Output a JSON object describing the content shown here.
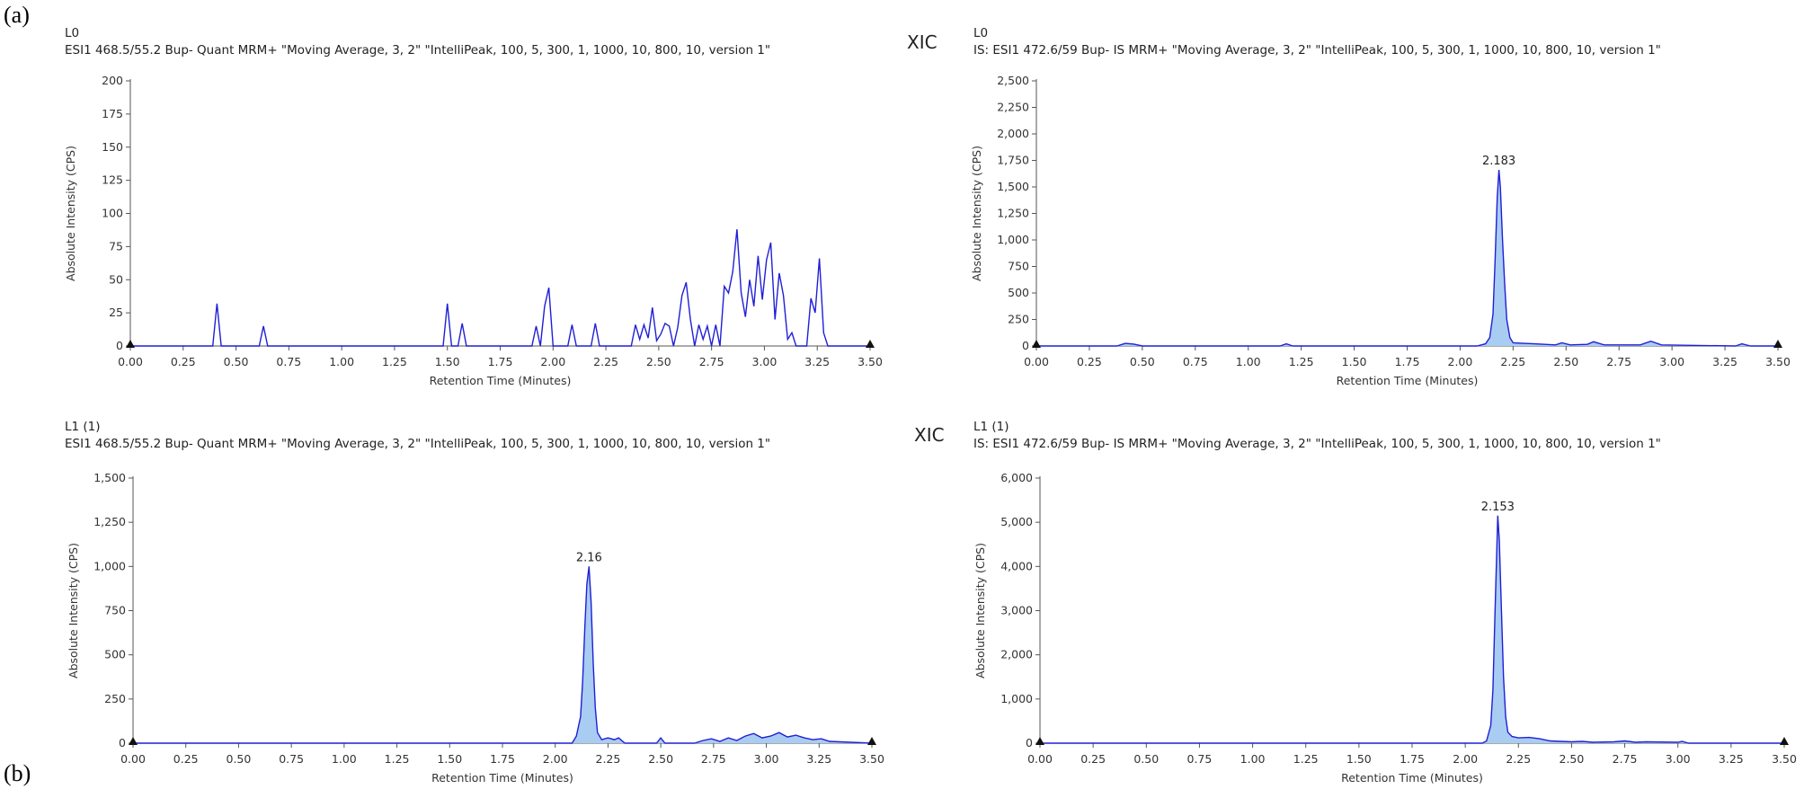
{
  "figure": {
    "label_a": "(a)",
    "label_b": "(b)"
  },
  "chart_data": [
    {
      "id": "a-left",
      "type": "line",
      "sample": "L0",
      "title": "ESI1 468.5/55.2 Bup- Quant MRM+ \"Moving Average, 3, 2\" \"IntelliPeak, 100, 5, 300, 1, 1000, 10, 800, 10, version 1\"",
      "xic": "",
      "xlabel": "Retention Time (Minutes)",
      "ylabel": "Absolute Intensity (CPS)",
      "xlim": [
        0,
        3.5
      ],
      "ylim": [
        0,
        200
      ],
      "xticks": [
        "0.00",
        "0.25",
        "0.50",
        "0.75",
        "1.00",
        "1.25",
        "1.50",
        "1.75",
        "2.00",
        "2.25",
        "2.50",
        "2.75",
        "3.00",
        "3.25",
        "3.50"
      ],
      "yticks": [
        "0",
        "25",
        "50",
        "75",
        "100",
        "125",
        "150",
        "175",
        "200"
      ],
      "line_color": "#1f1fd6",
      "fill_color": "",
      "peak": null,
      "x": [
        0,
        0.39,
        0.41,
        0.43,
        0.61,
        0.63,
        0.65,
        1.48,
        1.5,
        1.52,
        1.55,
        1.57,
        1.59,
        1.9,
        1.92,
        1.94,
        1.96,
        1.98,
        2.0,
        2.07,
        2.09,
        2.11,
        2.18,
        2.2,
        2.22,
        2.37,
        2.39,
        2.41,
        2.43,
        2.45,
        2.47,
        2.49,
        2.51,
        2.53,
        2.55,
        2.57,
        2.59,
        2.61,
        2.63,
        2.65,
        2.67,
        2.69,
        2.71,
        2.73,
        2.75,
        2.77,
        2.79,
        2.81,
        2.83,
        2.85,
        2.87,
        2.89,
        2.91,
        2.93,
        2.95,
        2.97,
        2.99,
        3.01,
        3.03,
        3.05,
        3.07,
        3.09,
        3.11,
        3.13,
        3.15,
        3.2,
        3.22,
        3.24,
        3.26,
        3.28,
        3.3,
        3.32,
        3.5
      ],
      "y": [
        0,
        0,
        32,
        0,
        0,
        15,
        0,
        0,
        32,
        0,
        0,
        17,
        0,
        0,
        15,
        0,
        30,
        44,
        0,
        0,
        16,
        0,
        0,
        17,
        0,
        0,
        16,
        5,
        16,
        6,
        29,
        4,
        9,
        17,
        15,
        0,
        14,
        38,
        48,
        20,
        0,
        16,
        5,
        15,
        0,
        16,
        0,
        45,
        40,
        56,
        88,
        40,
        22,
        50,
        30,
        68,
        35,
        65,
        78,
        20,
        55,
        38,
        5,
        10,
        0,
        0,
        36,
        25,
        66,
        10,
        0,
        0,
        0
      ]
    },
    {
      "id": "a-right",
      "type": "area",
      "sample": "L0",
      "title": "IS: ESI1 472.6/59 Bup- IS MRM+ \"Moving Average, 3, 2\" \"IntelliPeak, 100, 5, 300, 1, 1000, 10, 800, 10, version 1\"",
      "xic": "XIC",
      "xlabel": "Retention Time (Minutes)",
      "ylabel": "Absolute Intensity (CPS)",
      "xlim": [
        0,
        3.5
      ],
      "ylim": [
        0,
        2500
      ],
      "xticks": [
        "0.00",
        "0.25",
        "0.50",
        "0.75",
        "1.00",
        "1.25",
        "1.50",
        "1.75",
        "2.00",
        "2.25",
        "2.50",
        "2.75",
        "3.00",
        "3.25",
        "3.50"
      ],
      "yticks": [
        "0",
        "250",
        "500",
        "750",
        "1,000",
        "1,250",
        "1,500",
        "1,750",
        "2,000",
        "2,250",
        "2,500"
      ],
      "line_color": "#1f1fd6",
      "fill_color": "#a9ccf2",
      "peak": {
        "x": 2.183,
        "y": 1660,
        "label": "2.183"
      },
      "x": [
        0,
        0.38,
        0.42,
        0.46,
        0.5,
        1.15,
        1.18,
        1.21,
        2.08,
        2.12,
        2.14,
        2.155,
        2.165,
        2.175,
        2.183,
        2.19,
        2.2,
        2.21,
        2.22,
        2.235,
        2.25,
        2.3,
        2.35,
        2.45,
        2.48,
        2.52,
        2.6,
        2.63,
        2.68,
        2.85,
        2.9,
        2.95,
        3.3,
        3.33,
        3.37,
        3.5
      ],
      "y": [
        0,
        0,
        25,
        18,
        0,
        0,
        20,
        0,
        0,
        20,
        80,
        300,
        800,
        1400,
        1660,
        1500,
        1000,
        600,
        250,
        80,
        30,
        25,
        20,
        10,
        30,
        10,
        15,
        40,
        10,
        10,
        45,
        10,
        0,
        20,
        0,
        0
      ]
    },
    {
      "id": "b-left",
      "type": "area",
      "sample": "L1 (1)",
      "title": "ESI1 468.5/55.2 Bup- Quant MRM+ \"Moving Average, 3, 2\" \"IntelliPeak, 100, 5, 300, 1, 1000, 10, 800, 10, version 1\"",
      "xic": "",
      "xlabel": "Retention Time (Minutes)",
      "ylabel": "Absolute Intensity (CPS)",
      "xlim": [
        0,
        3.5
      ],
      "ylim": [
        0,
        1500
      ],
      "xticks": [
        "0.00",
        "0.25",
        "0.50",
        "0.75",
        "1.00",
        "1.25",
        "1.50",
        "1.75",
        "2.00",
        "2.25",
        "2.50",
        "2.75",
        "3.00",
        "3.25",
        "3.50"
      ],
      "yticks": [
        "0",
        "250",
        "500",
        "750",
        "1,000",
        "1,250",
        "1,500"
      ],
      "line_color": "#1f1fd6",
      "fill_color": "#a9ccf2",
      "peak": {
        "x": 2.16,
        "y": 1000,
        "label": "2.16"
      },
      "x": [
        0,
        2.08,
        2.1,
        2.12,
        2.13,
        2.14,
        2.15,
        2.16,
        2.17,
        2.18,
        2.19,
        2.2,
        2.22,
        2.25,
        2.28,
        2.3,
        2.33,
        2.48,
        2.5,
        2.52,
        2.66,
        2.7,
        2.74,
        2.78,
        2.82,
        2.86,
        2.9,
        2.94,
        2.98,
        3.02,
        3.06,
        3.1,
        3.14,
        3.18,
        3.22,
        3.26,
        3.3,
        3.5
      ],
      "y": [
        0,
        0,
        40,
        150,
        350,
        650,
        900,
        1000,
        800,
        450,
        200,
        60,
        20,
        30,
        20,
        30,
        0,
        0,
        30,
        0,
        0,
        15,
        25,
        10,
        30,
        15,
        40,
        55,
        30,
        40,
        60,
        35,
        45,
        30,
        20,
        25,
        10,
        0
      ]
    },
    {
      "id": "b-right",
      "type": "area",
      "sample": "L1 (1)",
      "title": "IS: ESI1 472.6/59 Bup- IS MRM+ \"Moving Average, 3, 2\" \"IntelliPeak, 100, 5, 300, 1, 1000, 10, 800, 10, version 1\"",
      "xic": "XIC",
      "xlabel": "Retention Time (Minutes)",
      "ylabel": "Absolute Intensity (CPS)",
      "xlim": [
        0,
        3.5
      ],
      "ylim": [
        0,
        6000
      ],
      "xticks": [
        "0.00",
        "0.25",
        "0.50",
        "0.75",
        "1.00",
        "1.25",
        "1.50",
        "1.75",
        "2.00",
        "2.25",
        "2.50",
        "2.75",
        "3.00",
        "3.25",
        "3.50"
      ],
      "yticks": [
        "0",
        "1,000",
        "2,000",
        "3,000",
        "4,000",
        "5,000",
        "6,000"
      ],
      "line_color": "#1f1fd6",
      "fill_color": "#a9ccf2",
      "peak": {
        "x": 2.153,
        "y": 5150,
        "label": "2.153"
      },
      "x": [
        0,
        2.08,
        2.1,
        2.12,
        2.13,
        2.14,
        2.153,
        2.16,
        2.17,
        2.18,
        2.19,
        2.2,
        2.22,
        2.25,
        2.3,
        2.35,
        2.4,
        2.5,
        2.55,
        2.6,
        2.7,
        2.75,
        2.8,
        2.85,
        3.0,
        3.02,
        3.05,
        3.5
      ],
      "y": [
        0,
        0,
        50,
        400,
        1200,
        3000,
        5150,
        4600,
        3000,
        1500,
        600,
        250,
        150,
        120,
        130,
        100,
        50,
        30,
        40,
        20,
        30,
        50,
        20,
        30,
        20,
        40,
        0,
        0
      ]
    }
  ]
}
